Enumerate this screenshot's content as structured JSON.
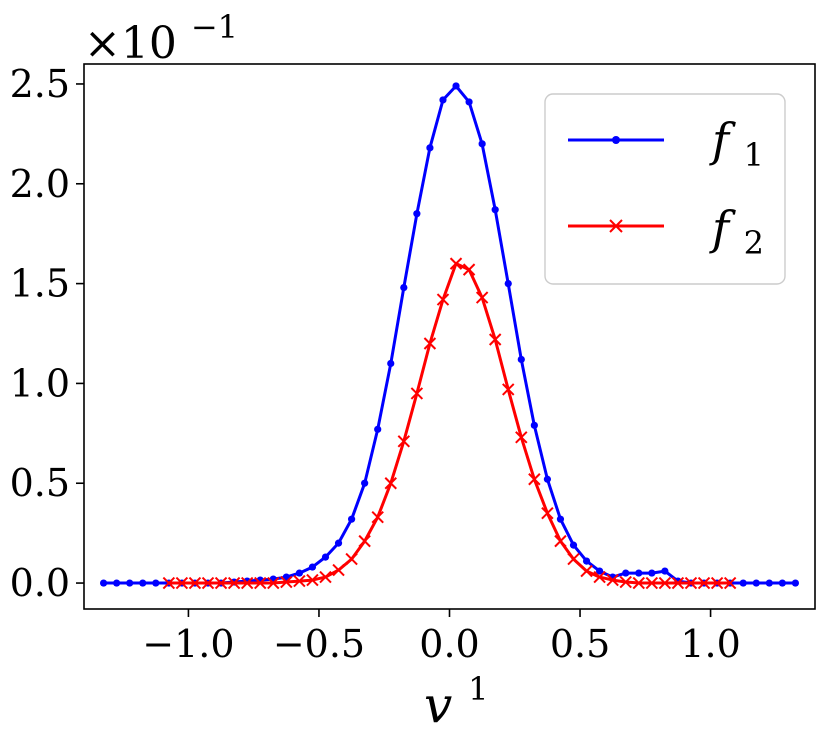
{
  "chart_data": {
    "type": "line",
    "scale_label": {
      "base": "×10",
      "exponent": "−1"
    },
    "xlabel": {
      "main": "v",
      "sup": "1"
    },
    "xlim": [
      -1.4,
      1.4
    ],
    "ylim": [
      -0.13,
      2.6
    ],
    "xticks": [
      -1.0,
      -0.5,
      0.0,
      0.5,
      1.0
    ],
    "xtick_labels": [
      "−1.0",
      "−0.5",
      "0.0",
      "0.5",
      "1.0"
    ],
    "yticks": [
      0.0,
      0.5,
      1.0,
      1.5,
      2.0,
      2.5
    ],
    "ytick_labels": [
      "0.0",
      "0.5",
      "1.0",
      "1.5",
      "2.0",
      "2.5"
    ],
    "legend": {
      "placement": "top-right",
      "entries": [
        {
          "main": "f",
          "sub": "1"
        },
        {
          "main": "f",
          "sub": "2"
        }
      ]
    },
    "series": [
      {
        "key": "f1",
        "color": "#0000ff",
        "marker": "dot",
        "x": [
          -1.325,
          -1.275,
          -1.225,
          -1.175,
          -1.125,
          -1.075,
          -1.025,
          -0.975,
          -0.925,
          -0.875,
          -0.825,
          -0.775,
          -0.725,
          -0.675,
          -0.625,
          -0.575,
          -0.525,
          -0.475,
          -0.425,
          -0.375,
          -0.325,
          -0.275,
          -0.225,
          -0.175,
          -0.125,
          -0.075,
          -0.025,
          0.025,
          0.075,
          0.125,
          0.175,
          0.225,
          0.275,
          0.325,
          0.375,
          0.425,
          0.475,
          0.525,
          0.575,
          0.625,
          0.675,
          0.725,
          0.775,
          0.825,
          0.875,
          0.925,
          0.975,
          1.025,
          1.075,
          1.125,
          1.175,
          1.225,
          1.275,
          1.325
        ],
        "y": [
          0.0,
          0.0,
          0.0,
          0.0,
          0.0,
          0.0,
          0.0,
          0.0,
          0.0,
          0.0,
          0.005,
          0.01,
          0.015,
          0.02,
          0.03,
          0.05,
          0.08,
          0.13,
          0.2,
          0.32,
          0.5,
          0.77,
          1.1,
          1.48,
          1.85,
          2.18,
          2.42,
          2.49,
          2.41,
          2.2,
          1.87,
          1.5,
          1.12,
          0.79,
          0.52,
          0.32,
          0.19,
          0.11,
          0.06,
          0.03,
          0.05,
          0.05,
          0.05,
          0.06,
          0.01,
          0.0,
          0.0,
          0.0,
          0.0,
          0.0,
          0.0,
          0.0,
          0.0,
          0.0
        ]
      },
      {
        "key": "f2",
        "color": "#ff0000",
        "marker": "x",
        "x": [
          -1.075,
          -1.025,
          -0.975,
          -0.925,
          -0.875,
          -0.825,
          -0.775,
          -0.725,
          -0.675,
          -0.625,
          -0.575,
          -0.525,
          -0.475,
          -0.425,
          -0.375,
          -0.325,
          -0.275,
          -0.225,
          -0.175,
          -0.125,
          -0.075,
          -0.025,
          0.025,
          0.075,
          0.125,
          0.175,
          0.225,
          0.275,
          0.325,
          0.375,
          0.425,
          0.475,
          0.525,
          0.575,
          0.625,
          0.675,
          0.725,
          0.775,
          0.825,
          0.875,
          0.925,
          0.975,
          1.025,
          1.075
        ],
        "y": [
          0.0,
          0.0,
          0.0,
          0.0,
          0.0,
          0.0,
          0.0,
          0.0,
          0.0,
          0.005,
          0.01,
          0.015,
          0.03,
          0.065,
          0.12,
          0.21,
          0.33,
          0.5,
          0.71,
          0.95,
          1.2,
          1.42,
          1.6,
          1.57,
          1.43,
          1.22,
          0.97,
          0.73,
          0.52,
          0.35,
          0.21,
          0.12,
          0.06,
          0.03,
          0.015,
          0.005,
          0.0,
          0.0,
          0.0,
          0.0,
          0.0,
          0.0,
          0.0,
          0.0
        ]
      }
    ]
  }
}
